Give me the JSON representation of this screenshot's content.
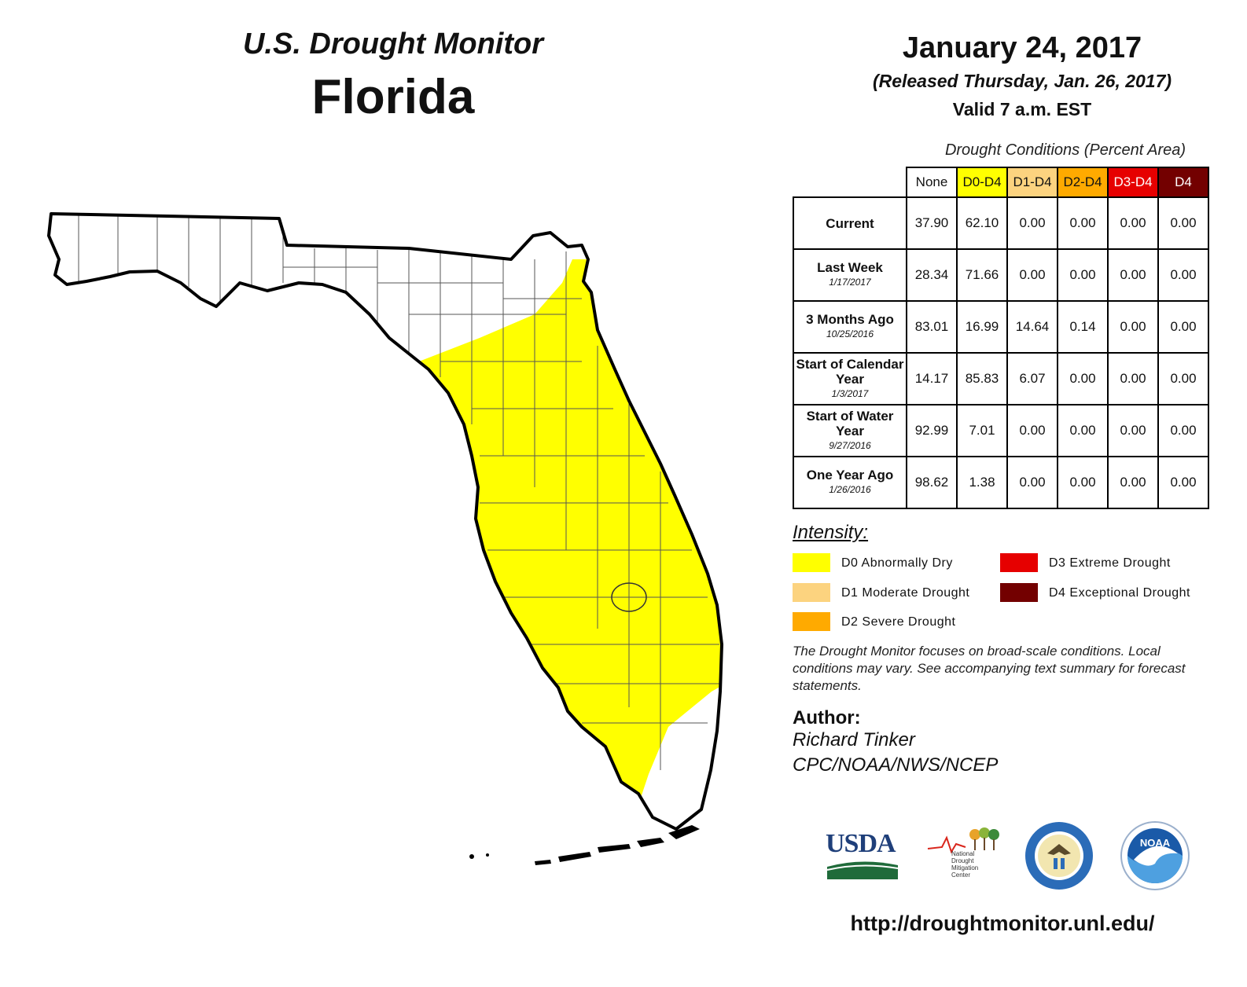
{
  "header": {
    "monitor_title": "U.S. Drought Monitor",
    "state": "Florida",
    "date": "January 24, 2017",
    "released": "(Released Thursday, Jan. 26, 2017)",
    "valid": "Valid 7 a.m. EST"
  },
  "table": {
    "caption": "Drought Conditions (Percent Area)",
    "columns": [
      {
        "label": "None",
        "color": "#ffffff",
        "text_color": "#111111"
      },
      {
        "label": "D0-D4",
        "color": "#ffff00",
        "text_color": "#111111"
      },
      {
        "label": "D1-D4",
        "color": "#fcd37f",
        "text_color": "#111111"
      },
      {
        "label": "D2-D4",
        "color": "#ffaa00",
        "text_color": "#111111"
      },
      {
        "label": "D3-D4",
        "color": "#e60000",
        "text_color": "#ffffff"
      },
      {
        "label": "D4",
        "color": "#730000",
        "text_color": "#ffffff"
      }
    ],
    "rows": [
      {
        "label": "Current",
        "sub": "",
        "values": [
          "37.90",
          "62.10",
          "0.00",
          "0.00",
          "0.00",
          "0.00"
        ]
      },
      {
        "label": "Last Week",
        "sub": "1/17/2017",
        "values": [
          "28.34",
          "71.66",
          "0.00",
          "0.00",
          "0.00",
          "0.00"
        ]
      },
      {
        "label": "3 Months Ago",
        "sub": "10/25/2016",
        "values": [
          "83.01",
          "16.99",
          "14.64",
          "0.14",
          "0.00",
          "0.00"
        ]
      },
      {
        "label": "Start of Calendar Year",
        "sub": "1/3/2017",
        "values": [
          "14.17",
          "85.83",
          "6.07",
          "0.00",
          "0.00",
          "0.00"
        ]
      },
      {
        "label": "Start of Water Year",
        "sub": "9/27/2016",
        "values": [
          "92.99",
          "7.01",
          "0.00",
          "0.00",
          "0.00",
          "0.00"
        ]
      },
      {
        "label": "One Year Ago",
        "sub": "1/26/2016",
        "values": [
          "98.62",
          "1.38",
          "0.00",
          "0.00",
          "0.00",
          "0.00"
        ]
      }
    ]
  },
  "legend": {
    "title": "Intensity:",
    "items": [
      {
        "label": "D0 Abnormally Dry",
        "color": "#ffff00"
      },
      {
        "label": "D1 Moderate Drought",
        "color": "#fcd37f"
      },
      {
        "label": "D2 Severe Drought",
        "color": "#ffaa00"
      },
      {
        "label": "D3 Extreme Drought",
        "color": "#e60000"
      },
      {
        "label": "D4 Exceptional Drought",
        "color": "#730000"
      }
    ]
  },
  "note": "The Drought Monitor focuses on broad-scale conditions. Local conditions may vary. See accompanying text summary for forecast statements.",
  "author": {
    "title": "Author:",
    "name": "Richard Tinker",
    "org": "CPC/NOAA/NWS/NCEP"
  },
  "logos": {
    "usda": "USDA",
    "ndmc": [
      "National",
      "Drought",
      "Mitigation",
      "Center"
    ],
    "noaa": "NOAA"
  },
  "url": "http://droughtmonitor.unl.edu/",
  "map": {
    "d0_color": "#ffff00",
    "none_color": "#ffffff",
    "outline_color": "#000000"
  }
}
